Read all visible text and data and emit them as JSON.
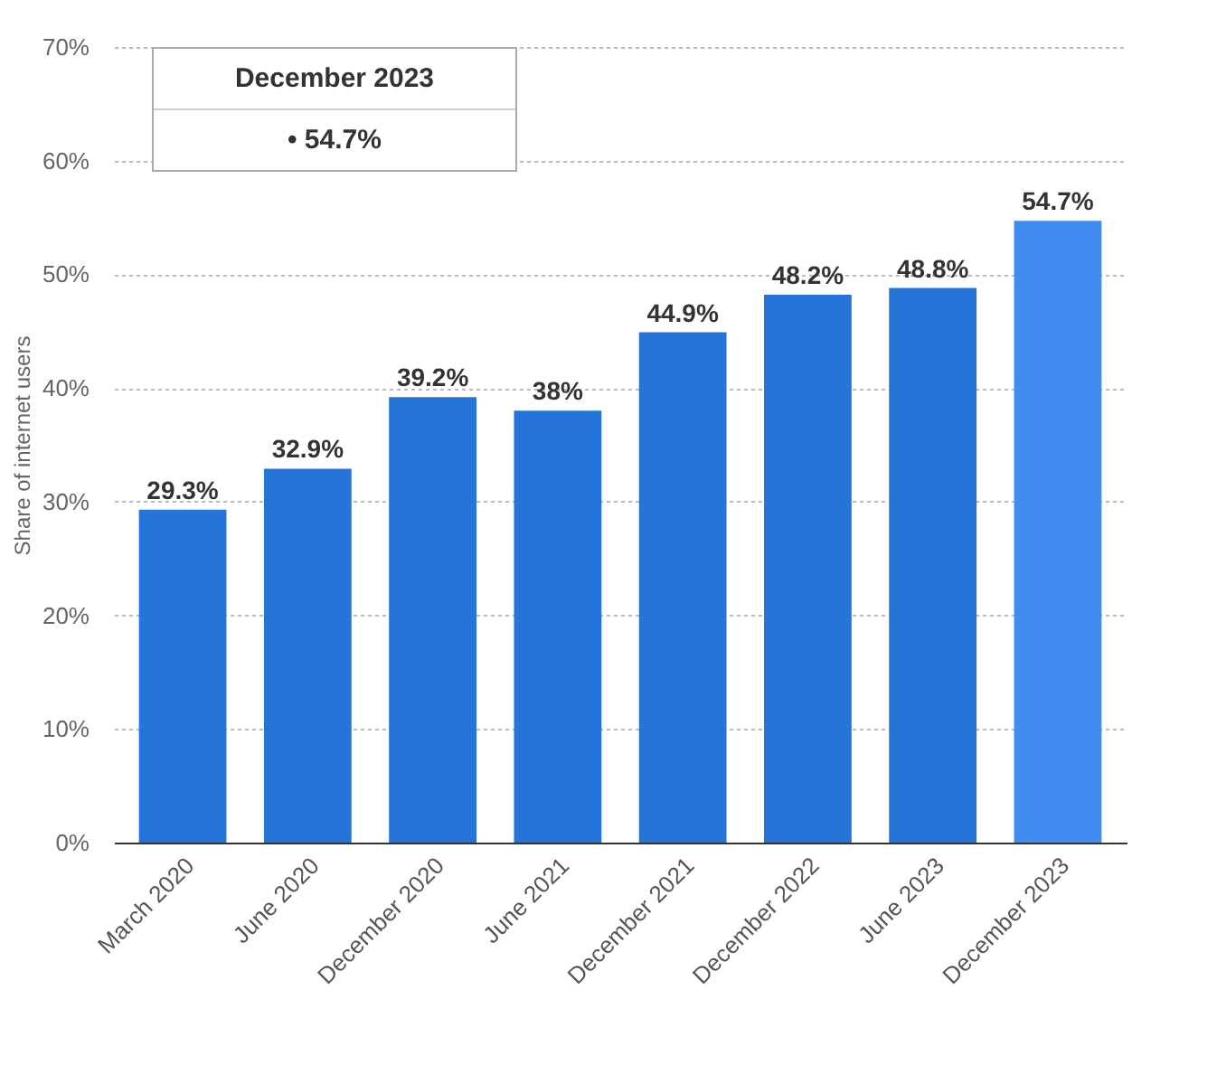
{
  "chart_data": {
    "type": "bar",
    "ylabel": "Share of internet users",
    "categories": [
      "March 2020",
      "June 2020",
      "December 2020",
      "June 2021",
      "December 2021",
      "December 2022",
      "June 2023",
      "December 2023"
    ],
    "values": [
      29.3,
      32.9,
      39.2,
      38,
      44.9,
      48.2,
      48.8,
      54.7
    ],
    "colors": [
      "#2574d8",
      "#2574d8",
      "#2574d8",
      "#2574d8",
      "#2574d8",
      "#2574d8",
      "#2574d8",
      "#418cf0"
    ],
    "value_labels": [
      "29.3%",
      "32.9%",
      "39.2%",
      "38%",
      "44.9%",
      "48.2%",
      "48.8%",
      "54.7%"
    ],
    "ylim": [
      0,
      70
    ],
    "yticks": [
      {
        "value": 0,
        "label": "0%"
      },
      {
        "value": 10,
        "label": "10%"
      },
      {
        "value": 20,
        "label": "20%"
      },
      {
        "value": 30,
        "label": "30%"
      },
      {
        "value": 40,
        "label": "40%"
      },
      {
        "value": 50,
        "label": "50%"
      },
      {
        "value": 60,
        "label": "60%"
      },
      {
        "value": 70,
        "label": "70%"
      }
    ],
    "grid": "y",
    "annotations": [
      "December 2023",
      "• 54.7%"
    ]
  }
}
